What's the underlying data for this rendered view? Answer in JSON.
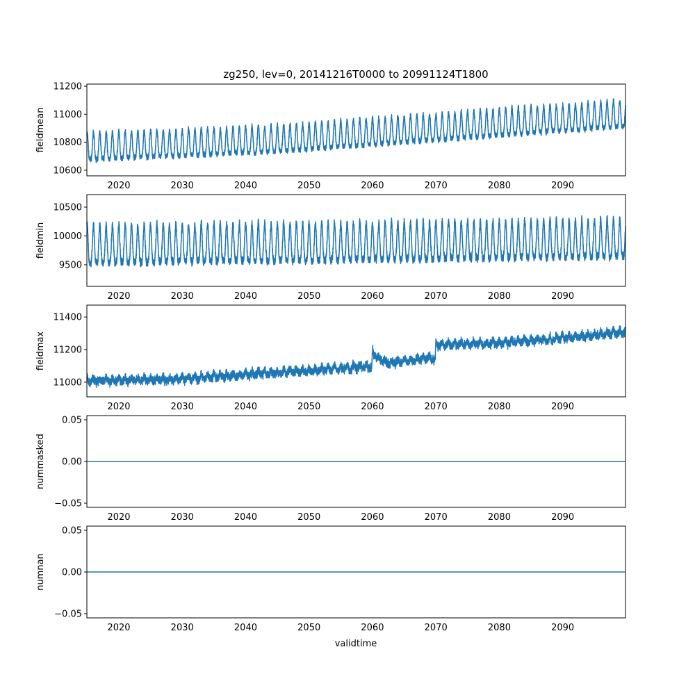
{
  "chart_data": {
    "type": "line",
    "title": "zg250, lev=0, 20141216T0000 to 20991124T1800",
    "xlabel": "validtime",
    "xlim": [
      2014.96,
      2099.9
    ],
    "xticks": [
      2020,
      2030,
      2040,
      2050,
      2060,
      2070,
      2080,
      2090
    ],
    "xtick_labels": [
      "2020",
      "2030",
      "2040",
      "2050",
      "2060",
      "2070",
      "2080",
      "2090"
    ],
    "minor_xtick_step": 5,
    "color": "#1f77b4",
    "panels": [
      {
        "ylabel": "fieldmean",
        "ylim": [
          10560,
          11215
        ],
        "yticks": [
          10600,
          10800,
          11000,
          11200
        ],
        "ytick_labels": [
          "10600",
          "10800",
          "11000",
          "11200"
        ],
        "trend_years": [
          2015,
          2030,
          2045,
          2060,
          2075,
          2090,
          2100
        ],
        "trend_values": [
          10745,
          10770,
          10800,
          10850,
          10900,
          10950,
          10980
        ],
        "seasonal_amplitude": 110,
        "noise": 25
      },
      {
        "ylabel": "fieldmin",
        "ylim": [
          9126,
          10717
        ],
        "yticks": [
          9500,
          10000,
          10500
        ],
        "ytick_labels": [
          "9500",
          "10000",
          "10500"
        ],
        "trend_years": [
          2015,
          2060,
          2100
        ],
        "trend_values": [
          9770,
          9820,
          9880
        ],
        "seasonal_amplitude": 380,
        "noise": 90
      },
      {
        "ylabel": "fieldmax",
        "ylim": [
          10910,
          11473
        ],
        "yticks": [
          11000,
          11200,
          11400
        ],
        "ytick_labels": [
          "11000",
          "11200",
          "11400"
        ],
        "trend_years": [
          2015,
          2030,
          2045,
          2050,
          2059.9,
          2060,
          2062,
          2069.9,
          2070,
          2080,
          2090,
          2100
        ],
        "trend_values": [
          11010,
          11020,
          11060,
          11070,
          11100,
          11180,
          11120,
          11150,
          11230,
          11240,
          11270,
          11310
        ],
        "seasonal_amplitude": 15,
        "noise": 35
      },
      {
        "ylabel": "nummasked",
        "ylim": [
          -0.055,
          0.055
        ],
        "yticks": [
          -0.05,
          0,
          0.05
        ],
        "ytick_labels": [
          "−0.05",
          "0.00",
          "0.05"
        ],
        "constant": 0
      },
      {
        "ylabel": "numnan",
        "ylim": [
          -0.055,
          0.055
        ],
        "yticks": [
          -0.05,
          0,
          0.05
        ],
        "ytick_labels": [
          "−0.05",
          "0.00",
          "0.05"
        ],
        "constant": 0
      }
    ]
  }
}
